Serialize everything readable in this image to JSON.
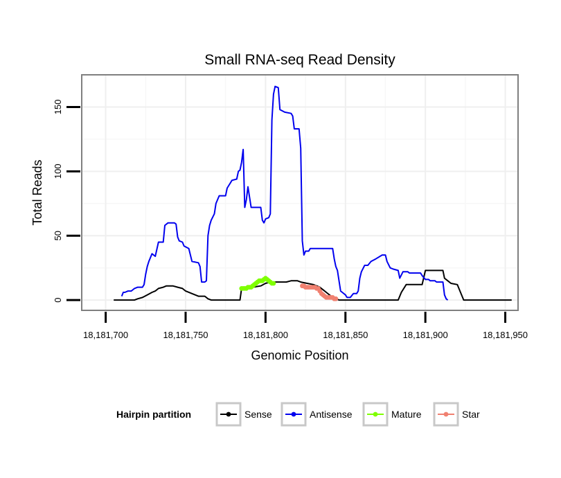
{
  "chart_data": {
    "type": "line",
    "title": "Small RNA-seq Read Density",
    "xlabel": "Genomic Position",
    "ylabel": "Total Reads",
    "xlim": [
      18181685,
      18181958
    ],
    "ylim": [
      -8,
      175
    ],
    "x_ticks": [
      18181700,
      18181750,
      18181800,
      18181850,
      18181900,
      18181950
    ],
    "x_tick_labels": [
      "18,181,700",
      "18,181,750",
      "18,181,800",
      "18,181,850",
      "18,181,900",
      "18,181,950"
    ],
    "y_ticks": [
      0,
      50,
      100,
      150
    ],
    "y_tick_labels": [
      "0",
      "50",
      "100",
      "150"
    ],
    "grid": true,
    "legend": {
      "title": "Hairpin partition",
      "position": "bottom",
      "entries": [
        "Sense",
        "Antisense",
        "Mature",
        "Star"
      ]
    },
    "series": [
      {
        "name": "Sense",
        "color": "#000000",
        "marker": false,
        "points": [
          [
            18181705,
            0
          ],
          [
            18181718,
            0
          ],
          [
            18181720,
            1
          ],
          [
            18181723,
            2
          ],
          [
            18181726,
            4
          ],
          [
            18181729,
            6
          ],
          [
            18181731,
            7
          ],
          [
            18181733,
            9
          ],
          [
            18181736,
            10
          ],
          [
            18181738,
            11
          ],
          [
            18181742,
            11
          ],
          [
            18181745,
            10
          ],
          [
            18181748,
            9
          ],
          [
            18181750,
            7
          ],
          [
            18181754,
            5
          ],
          [
            18181758,
            3
          ],
          [
            18181762,
            3
          ],
          [
            18181764,
            1
          ],
          [
            18181766,
            0
          ],
          [
            18181784,
            0
          ],
          [
            18181785,
            9
          ],
          [
            18181792,
            10
          ],
          [
            18181797,
            11
          ],
          [
            18181800,
            13
          ],
          [
            18181803,
            14
          ],
          [
            18181807,
            14
          ],
          [
            18181810,
            14
          ],
          [
            18181813,
            14
          ],
          [
            18181816,
            15
          ],
          [
            18181820,
            15
          ],
          [
            18181822,
            14
          ],
          [
            18181826,
            13
          ],
          [
            18181830,
            12
          ],
          [
            18181834,
            10
          ],
          [
            18181836,
            8
          ],
          [
            18181838,
            6
          ],
          [
            18181840,
            4
          ],
          [
            18181842,
            2
          ],
          [
            18181844,
            1
          ],
          [
            18181846,
            0
          ],
          [
            18181883,
            0
          ],
          [
            18181885,
            6
          ],
          [
            18181888,
            12
          ],
          [
            18181898,
            12
          ],
          [
            18181900,
            23
          ],
          [
            18181911,
            23
          ],
          [
            18181912,
            17
          ],
          [
            18181914,
            15
          ],
          [
            18181916,
            13
          ],
          [
            18181920,
            12
          ],
          [
            18181922,
            6
          ],
          [
            18181924,
            0
          ],
          [
            18181954,
            0
          ]
        ]
      },
      {
        "name": "Antisense",
        "color": "#0000ee",
        "marker": false,
        "points": [
          [
            18181710,
            3
          ],
          [
            18181711,
            6
          ],
          [
            18181712,
            6
          ],
          [
            18181714,
            7
          ],
          [
            18181716,
            7
          ],
          [
            18181718,
            9
          ],
          [
            18181720,
            10
          ],
          [
            18181723,
            10
          ],
          [
            18181724,
            12
          ],
          [
            18181725,
            20
          ],
          [
            18181726,
            26
          ],
          [
            18181727,
            30
          ],
          [
            18181729,
            36
          ],
          [
            18181731,
            34
          ],
          [
            18181733,
            45
          ],
          [
            18181736,
            45
          ],
          [
            18181737,
            58
          ],
          [
            18181739,
            60
          ],
          [
            18181743,
            60
          ],
          [
            18181744,
            59
          ],
          [
            18181745,
            49
          ],
          [
            18181746,
            46
          ],
          [
            18181748,
            45
          ],
          [
            18181749,
            42
          ],
          [
            18181752,
            40
          ],
          [
            18181754,
            30
          ],
          [
            18181758,
            29
          ],
          [
            18181759,
            26
          ],
          [
            18181760,
            14
          ],
          [
            18181762,
            14
          ],
          [
            18181763,
            15
          ],
          [
            18181764,
            50
          ],
          [
            18181765,
            58
          ],
          [
            18181766,
            62
          ],
          [
            18181768,
            67
          ],
          [
            18181769,
            75
          ],
          [
            18181771,
            81
          ],
          [
            18181775,
            81
          ],
          [
            18181776,
            87
          ],
          [
            18181778,
            91
          ],
          [
            18181779,
            93
          ],
          [
            18181782,
            94
          ],
          [
            18181783,
            100
          ],
          [
            18181784,
            101
          ],
          [
            18181785,
            107
          ],
          [
            18181786,
            117
          ],
          [
            18181787,
            72
          ],
          [
            18181788,
            78
          ],
          [
            18181789,
            88
          ],
          [
            18181790,
            80
          ],
          [
            18181791,
            72
          ],
          [
            18181797,
            72
          ],
          [
            18181798,
            62
          ],
          [
            18181799,
            60
          ],
          [
            18181800,
            63
          ],
          [
            18181802,
            64
          ],
          [
            18181803,
            67
          ],
          [
            18181804,
            140
          ],
          [
            18181805,
            160
          ],
          [
            18181806,
            166
          ],
          [
            18181808,
            165
          ],
          [
            18181809,
            148
          ],
          [
            18181812,
            146
          ],
          [
            18181816,
            145
          ],
          [
            18181817,
            143
          ],
          [
            18181818,
            133
          ],
          [
            18181821,
            133
          ],
          [
            18181822,
            118
          ],
          [
            18181823,
            46
          ],
          [
            18181824,
            35
          ],
          [
            18181825,
            38
          ],
          [
            18181827,
            38
          ],
          [
            18181828,
            40
          ],
          [
            18181842,
            40
          ],
          [
            18181843,
            32
          ],
          [
            18181844,
            26
          ],
          [
            18181845,
            23
          ],
          [
            18181847,
            7
          ],
          [
            18181848,
            6
          ],
          [
            18181850,
            4
          ],
          [
            18181851,
            2
          ],
          [
            18181853,
            2
          ],
          [
            18181855,
            5
          ],
          [
            18181857,
            5
          ],
          [
            18181858,
            7
          ],
          [
            18181859,
            17
          ],
          [
            18181860,
            22
          ],
          [
            18181862,
            27
          ],
          [
            18181864,
            27
          ],
          [
            18181866,
            30
          ],
          [
            18181869,
            32
          ],
          [
            18181873,
            35
          ],
          [
            18181875,
            35
          ],
          [
            18181876,
            30
          ],
          [
            18181878,
            25
          ],
          [
            18181880,
            24
          ],
          [
            18181883,
            23
          ],
          [
            18181884,
            17
          ],
          [
            18181886,
            22
          ],
          [
            18181889,
            22
          ],
          [
            18181890,
            21
          ],
          [
            18181897,
            21
          ],
          [
            18181898,
            19
          ],
          [
            18181900,
            16
          ],
          [
            18181902,
            16
          ],
          [
            18181903,
            15
          ],
          [
            18181906,
            15
          ],
          [
            18181907,
            14
          ],
          [
            18181911,
            14
          ],
          [
            18181912,
            4
          ],
          [
            18181913,
            1
          ],
          [
            18181914,
            0
          ]
        ]
      },
      {
        "name": "Mature",
        "color": "#7fff00",
        "marker": true,
        "points": [
          [
            18181785,
            9
          ],
          [
            18181786,
            9
          ],
          [
            18181787,
            9
          ],
          [
            18181788,
            9
          ],
          [
            18181789,
            10
          ],
          [
            18181790,
            10
          ],
          [
            18181791,
            10
          ],
          [
            18181792,
            11
          ],
          [
            18181793,
            12
          ],
          [
            18181794,
            13
          ],
          [
            18181795,
            14
          ],
          [
            18181796,
            15
          ],
          [
            18181797,
            15
          ],
          [
            18181798,
            15
          ],
          [
            18181799,
            16
          ],
          [
            18181800,
            17
          ],
          [
            18181801,
            16
          ],
          [
            18181802,
            15
          ],
          [
            18181803,
            14
          ],
          [
            18181804,
            13
          ],
          [
            18181805,
            13
          ]
        ]
      },
      {
        "name": "Star",
        "color": "#f08070",
        "marker": true,
        "points": [
          [
            18181823,
            11
          ],
          [
            18181824,
            11
          ],
          [
            18181825,
            10
          ],
          [
            18181826,
            10
          ],
          [
            18181827,
            10
          ],
          [
            18181828,
            10
          ],
          [
            18181829,
            10
          ],
          [
            18181830,
            10
          ],
          [
            18181831,
            10
          ],
          [
            18181832,
            9
          ],
          [
            18181833,
            9
          ],
          [
            18181834,
            7
          ],
          [
            18181835,
            5
          ],
          [
            18181836,
            4
          ],
          [
            18181837,
            3
          ],
          [
            18181838,
            2
          ],
          [
            18181839,
            2
          ],
          [
            18181840,
            2
          ],
          [
            18181841,
            2
          ],
          [
            18181842,
            2
          ],
          [
            18181843,
            1
          ],
          [
            18181844,
            1
          ]
        ]
      }
    ]
  }
}
